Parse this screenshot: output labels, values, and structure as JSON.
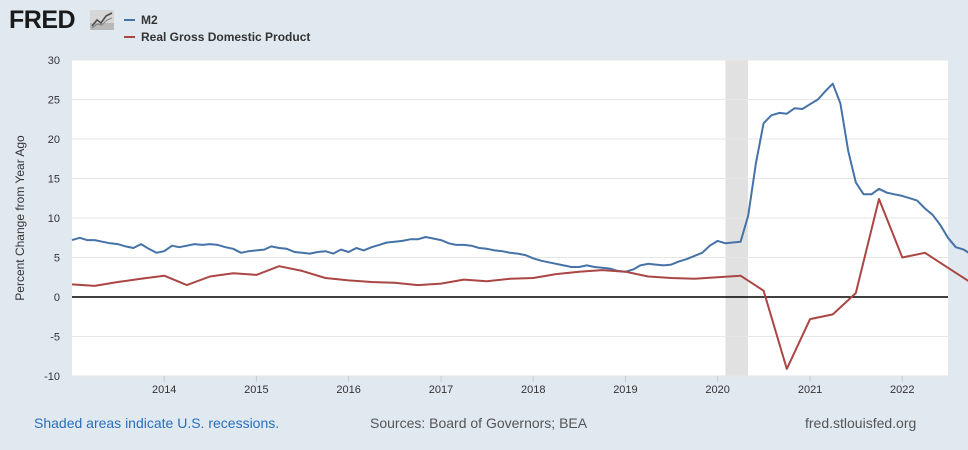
{
  "header": {
    "logo_text": "FRED",
    "logo_icon": "line-chart-icon"
  },
  "colors": {
    "background": "#e1e9f0",
    "plot_background": "#ffffff",
    "m2": "#4572a7",
    "gdp": "#aa4643",
    "recession": "#e1e1e1",
    "zero_line": "#000000"
  },
  "chart_data": {
    "type": "line",
    "title": "",
    "xlabel": "",
    "ylabel": "Percent Change from Year Ago",
    "ylim": [
      -10,
      30
    ],
    "y_ticks": [
      30,
      25,
      20,
      15,
      10,
      5,
      0,
      -5,
      -10
    ],
    "x_range": [
      "2013-01-01",
      "2022-07-01"
    ],
    "x_ticks": [
      "2014",
      "2015",
      "2016",
      "2017",
      "2018",
      "2019",
      "2020",
      "2021",
      "2022"
    ],
    "grid": "horizontal",
    "legend_position": "top-left",
    "recessions": [
      {
        "start": "2020-02-01",
        "end": "2020-04-30"
      }
    ],
    "series": [
      {
        "name": "M2",
        "frequency": "monthly",
        "start": "2013-01-01",
        "values": [
          7.2,
          7.5,
          7.2,
          7.2,
          7.0,
          6.8,
          6.7,
          6.4,
          6.2,
          6.7,
          6.1,
          5.6,
          5.8,
          6.5,
          6.3,
          6.5,
          6.7,
          6.6,
          6.7,
          6.6,
          6.3,
          6.1,
          5.6,
          5.8,
          5.9,
          6.0,
          6.4,
          6.2,
          6.1,
          5.7,
          5.6,
          5.5,
          5.7,
          5.8,
          5.5,
          6.0,
          5.7,
          6.2,
          5.9,
          6.3,
          6.6,
          6.9,
          7.0,
          7.1,
          7.3,
          7.3,
          7.6,
          7.4,
          7.2,
          6.8,
          6.6,
          6.6,
          6.5,
          6.2,
          6.1,
          5.9,
          5.8,
          5.6,
          5.5,
          5.3,
          4.9,
          4.6,
          4.4,
          4.2,
          4.0,
          3.8,
          3.8,
          4.0,
          3.8,
          3.7,
          3.6,
          3.3,
          3.2,
          3.5,
          4.0,
          4.2,
          4.1,
          4.0,
          4.1,
          4.5,
          4.8,
          5.2,
          5.6,
          6.5,
          7.1,
          6.8,
          6.9,
          7.0,
          10.3,
          17.0,
          22.0,
          23.0,
          23.3,
          23.2,
          23.9,
          23.8,
          24.4,
          25.0,
          26.0,
          27.0,
          24.5,
          18.5,
          14.5,
          13.0,
          13.0,
          13.7,
          13.2,
          13.0,
          12.8,
          12.5,
          12.2,
          11.2,
          10.4,
          9.1,
          7.5,
          6.3,
          6.0,
          5.4
        ]
      },
      {
        "name": "Real Gross Domestic Product",
        "frequency": "quarterly",
        "start": "2013-01-01",
        "values": [
          1.6,
          1.4,
          1.9,
          2.3,
          2.7,
          1.5,
          2.6,
          3.0,
          2.8,
          3.9,
          3.3,
          2.4,
          2.1,
          1.9,
          1.8,
          1.5,
          1.7,
          2.2,
          2.0,
          2.3,
          2.4,
          2.9,
          3.2,
          3.4,
          3.2,
          2.6,
          2.4,
          2.3,
          2.5,
          2.7,
          0.8,
          -9.1,
          -2.8,
          -2.2,
          0.5,
          12.4,
          5.0,
          5.6,
          3.7,
          1.8
        ]
      }
    ]
  },
  "footer": {
    "recession_note": "Shaded areas indicate U.S. recessions.",
    "sources": "Sources: Board of Governors; BEA",
    "url": "fred.stlouisfed.org"
  }
}
